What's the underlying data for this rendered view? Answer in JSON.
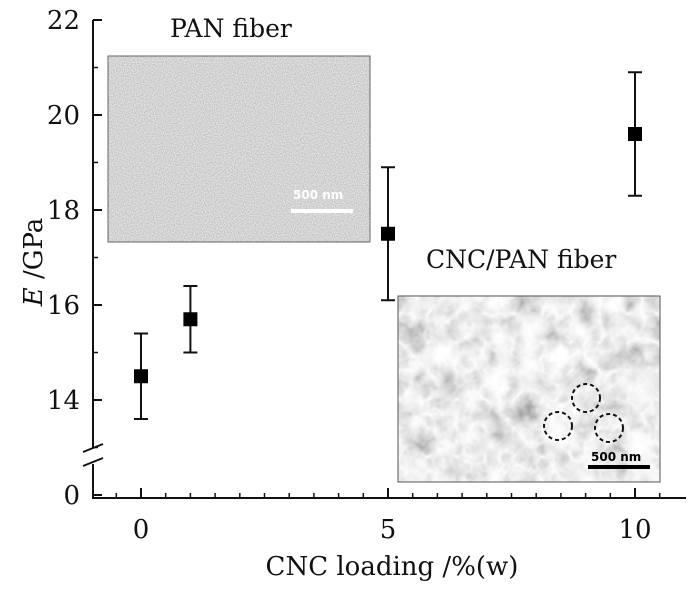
{
  "chart_data": {
    "type": "scatter",
    "xlabel": "CNC loading /%(w)",
    "ylabel_italic": "E",
    "ylabel_rest": " /GPa",
    "xlim": [
      -1,
      11
    ],
    "ylim_upper": [
      13,
      22
    ],
    "y_break": true,
    "x_ticks": [
      "0",
      "5",
      "10"
    ],
    "y_ticks": [
      "0",
      "14",
      "16",
      "18",
      "20",
      "22"
    ],
    "series": [
      {
        "points": [
          {
            "x": 0,
            "y": 14.5,
            "err_low": 13.6,
            "err_high": 15.4
          },
          {
            "x": 1,
            "y": 15.7,
            "err_low": 15.0,
            "err_high": 16.4
          },
          {
            "x": 5,
            "y": 17.5,
            "err_low": 16.1,
            "err_high": 18.9
          },
          {
            "x": 10,
            "y": 19.6,
            "err_low": 18.3,
            "err_high": 20.9
          }
        ]
      }
    ],
    "grid": false
  },
  "insets": {
    "left": {
      "title": "PAN fiber",
      "scale_label": "500 nm"
    },
    "right": {
      "title": "CNC/PAN fiber",
      "scale_label": "500 nm"
    }
  }
}
